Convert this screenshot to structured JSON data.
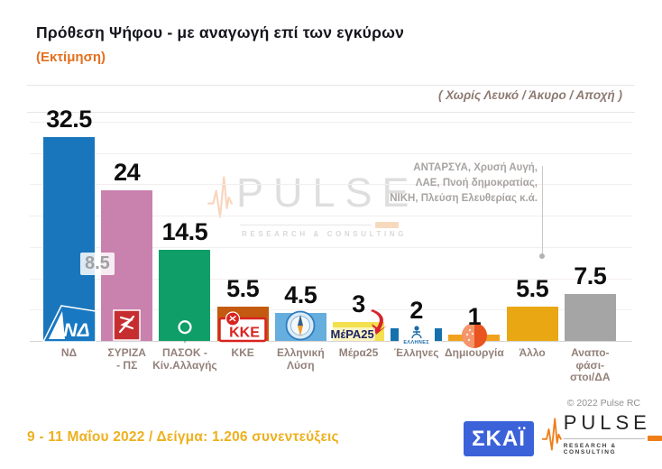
{
  "header": {
    "title": "Πρόθεση Ψήφου - με αναγωγή επί των εγκύρων",
    "estimate_label": "(Εκτίμηση)",
    "exclusion_note": "( Χωρίς Λευκό / Άκυρο / Αποχή )"
  },
  "chart_data": {
    "type": "bar",
    "title": "Πρόθεση Ψήφου - με αναγωγή επί των εγκύρων (Εκτίμηση)",
    "categories": [
      "ΝΔ",
      "ΣΥΡΙΖΑ - ΠΣ",
      "ΠΑΣΟΚ - Κίν.Αλλαγής",
      "ΚΚΕ",
      "Ελληνική Λύση",
      "Μέρα25",
      "Έλληνες",
      "Δημιουργία",
      "Άλλο",
      "Αναποφάσιστοι/ΔΑ"
    ],
    "category_label_lines": [
      [
        "ΝΔ"
      ],
      [
        "ΣΥΡΙΖΑ",
        "- ΠΣ"
      ],
      [
        "ΠΑΣΟΚ -",
        "Κίν.Αλλαγής"
      ],
      [
        "ΚΚΕ"
      ],
      [
        "Ελληνική",
        "Λύση"
      ],
      [
        "Μέρα25"
      ],
      [
        "Έλληνες"
      ],
      [
        "Δημιουργία"
      ],
      [
        "Άλλο"
      ],
      [
        "Αναπο-",
        "φάσι-",
        "στοι/ΔΑ"
      ]
    ],
    "values": [
      32.5,
      24,
      14.5,
      5.5,
      4.5,
      3,
      2,
      1,
      5.5,
      7.5
    ],
    "bar_colors": [
      "#1a76bc",
      "#c981ad",
      "#0f9e68",
      "#c45a10",
      "#66aedd",
      "#f2e04e",
      "#1471ad",
      "#f0a21f",
      "#e9a714",
      "#a5a5a5"
    ],
    "slugs": [
      "nd",
      "syriza-ps",
      "pasok-kinal",
      "kke",
      "elliniki-lysi",
      "mera25",
      "ellines",
      "dimiourgia",
      "allo",
      "anapofasistoi-da"
    ],
    "logos": [
      "nd-flag",
      "syriza-emblem",
      "pasok-sun",
      "kke-emblem",
      "elliniki-lysi-compass",
      "mera25-wordmark",
      "ellines-emblem",
      "dimiourgia-circle",
      null,
      null
    ],
    "lead_gap_label": "8.5",
    "lead_gap_between": [
      "ΝΔ",
      "ΣΥΡΙΖΑ - ΠΣ"
    ],
    "annotation": {
      "lines": [
        "ΑΝΤΑΡΣΥΑ, Χρυσή Αυγή,",
        "ΛΑΕ, Πνοή δημοκρατίας,",
        "ΝΙΚΗ, Πλεύση Ελευθερίας κ.ά."
      ],
      "points_to": "Άλλο"
    },
    "xlabel": "",
    "ylabel": "",
    "ylim": [
      0,
      36.5
    ],
    "grid": true,
    "legend": false
  },
  "logo_texts": {
    "nd": "ΝΔ",
    "kke": "ΚΚΕ",
    "mera25": "ΜέΡΑ25",
    "ellines": "ΕΛΛΗΝΕΣ"
  },
  "watermark": {
    "brand": "PULSE",
    "tagline": "RESEARCH & CONSULTING"
  },
  "footer": {
    "copyright": "© 2022 Pulse RC",
    "fieldwork": "9 - 11 Μαΐου  2022  /  Δείγμα:  1.206 συνεντεύξεις",
    "skai_logo_text": "ΣΚΑΪ",
    "pulse_logo_text": "PULSE",
    "pulse_logo_tagline": "RESEARCH & CONSULTING"
  },
  "colors": {
    "accent_orange": "#e4701e",
    "footer_gold": "#eeb01e",
    "note_brown": "#8d7a72",
    "annotation_gray": "#a8a4a2",
    "skai_blue": "#3c62d9",
    "pulse_orange": "#f07d18"
  }
}
